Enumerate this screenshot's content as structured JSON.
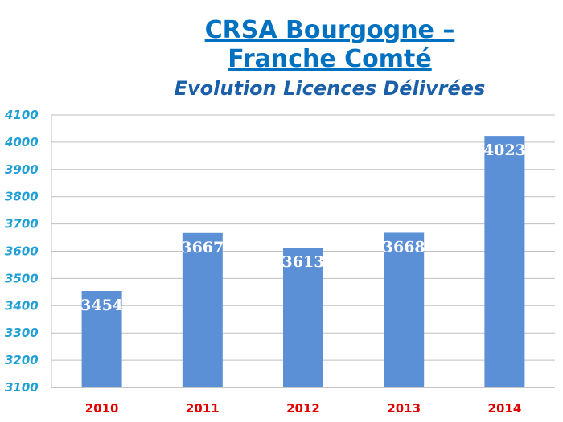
{
  "chart_data": {
    "type": "bar",
    "title_line1": "CRSA Bourgogne –",
    "title_line2": "Franche Comté",
    "subtitle": "Evolution Licences Délivrées",
    "categories": [
      "2010",
      "2011",
      "2012",
      "2013",
      "2014"
    ],
    "values": [
      3454,
      3667,
      3613,
      3668,
      4023
    ],
    "ylim": [
      3100,
      4100
    ],
    "yticks": [
      3100,
      3200,
      3300,
      3400,
      3500,
      3600,
      3700,
      3800,
      3900,
      4000,
      4100
    ],
    "grid": true,
    "legend": "none",
    "xlabel": "",
    "ylabel": ""
  },
  "colors": {
    "bar": "#5b8fd6",
    "title": "#0070c0",
    "ytick": "#1f9fd6",
    "xtick": "#e00000",
    "grid": "#bfbfbf",
    "data_label": "#ffffff"
  }
}
